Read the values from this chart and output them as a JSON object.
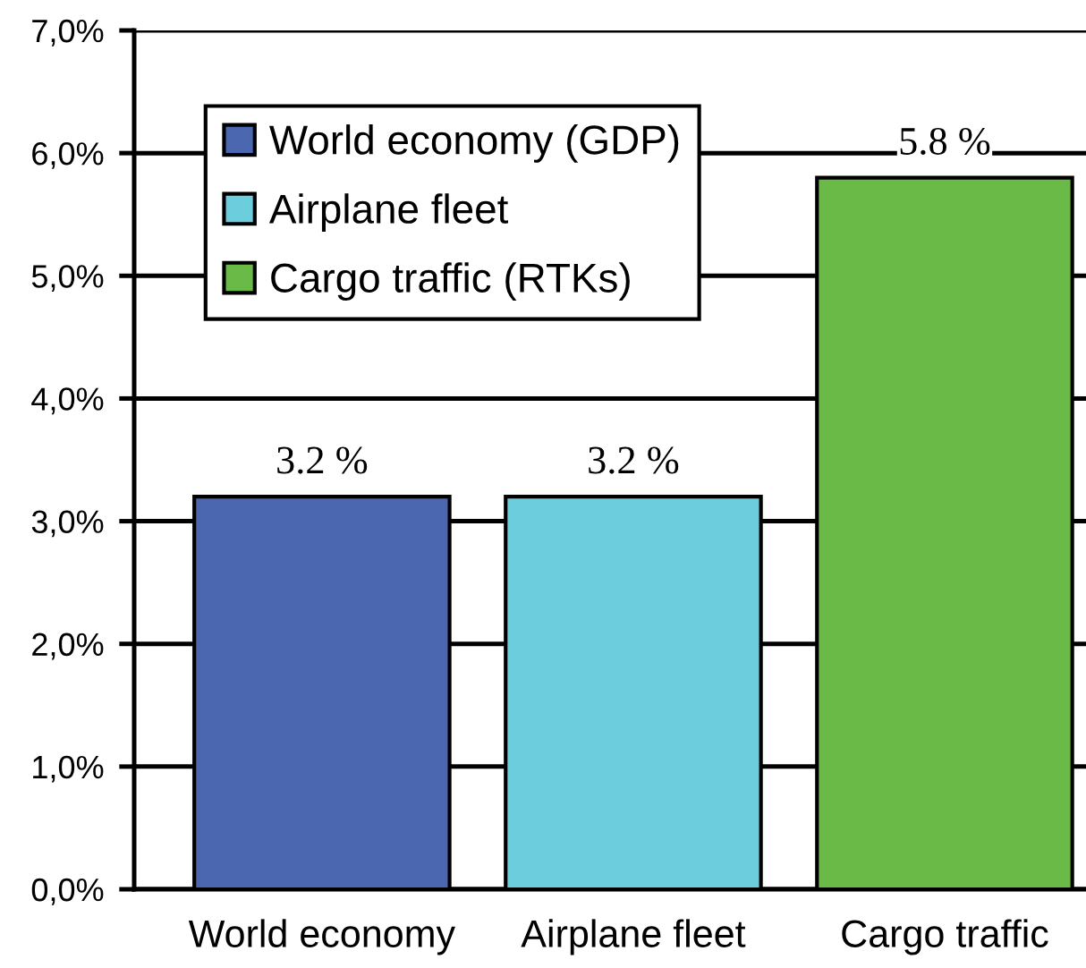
{
  "chart_data": {
    "type": "bar",
    "categories": [
      "World economy",
      "Airplane fleet",
      "Cargo traffic"
    ],
    "series": [
      {
        "name": "World economy (GDP)",
        "color": "#4a67b0",
        "values": [
          3.2,
          null,
          null
        ],
        "value_labels": [
          "3.2 %",
          null,
          null
        ]
      },
      {
        "name": "Airplane fleet",
        "color": "#6ccddc",
        "values": [
          null,
          3.2,
          null
        ],
        "value_labels": [
          null,
          "3.2 %",
          null
        ]
      },
      {
        "name": "Cargo traffic (RTKs)",
        "color": "#6aba47",
        "values": [
          null,
          null,
          5.8
        ],
        "value_labels": [
          null,
          null,
          "5.8 %"
        ]
      }
    ],
    "stacked": true,
    "ylim": [
      0,
      7
    ],
    "yticks": [
      {
        "value": 0,
        "label": "0,0%"
      },
      {
        "value": 1,
        "label": "1,0%"
      },
      {
        "value": 2,
        "label": "2,0%"
      },
      {
        "value": 3,
        "label": "3,0%"
      },
      {
        "value": 4,
        "label": "4,0%"
      },
      {
        "value": 5,
        "label": "5,0%"
      },
      {
        "value": 6,
        "label": "6,0%"
      },
      {
        "value": 7,
        "label": "7,0%"
      }
    ],
    "grid": "y",
    "legend": "top left"
  }
}
